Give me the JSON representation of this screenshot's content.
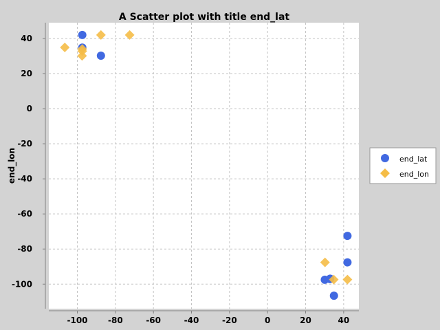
{
  "chart_data": {
    "type": "scatter",
    "title": "A Scatter plot with title end_lat",
    "xlabel": "",
    "ylabel": "end_lon",
    "xlim": [
      -115,
      48
    ],
    "ylim": [
      -114,
      49
    ],
    "xticks": [
      -100,
      -80,
      -60,
      -40,
      -20,
      0,
      20,
      40
    ],
    "yticks": [
      40,
      20,
      0,
      -20,
      -40,
      -60,
      -80,
      -100
    ],
    "grid": true,
    "legend_position": "right",
    "series": [
      {
        "name": "end_lat",
        "marker": "circle",
        "color": "#4169e1",
        "points": [
          [
            -97.4,
            42.0
          ],
          [
            -97.4,
            34.8
          ],
          [
            -87.6,
            30.2
          ],
          [
            42.0,
            -72.5
          ],
          [
            42.0,
            -87.6
          ],
          [
            30.1,
            -97.5
          ],
          [
            32.8,
            -97.1
          ],
          [
            34.9,
            -106.6
          ],
          [
            32.9,
            -96.9
          ]
        ]
      },
      {
        "name": "end_lon",
        "marker": "diamond",
        "color": "#f5bd47",
        "points": [
          [
            -106.6,
            34.9
          ],
          [
            -97.4,
            32.8
          ],
          [
            -97.5,
            30.1
          ],
          [
            -87.6,
            42.0
          ],
          [
            -72.5,
            42.0
          ],
          [
            -97.4,
            34.0
          ],
          [
            30.2,
            -87.6
          ],
          [
            34.8,
            -97.4
          ],
          [
            42.0,
            -97.4
          ]
        ]
      }
    ]
  }
}
